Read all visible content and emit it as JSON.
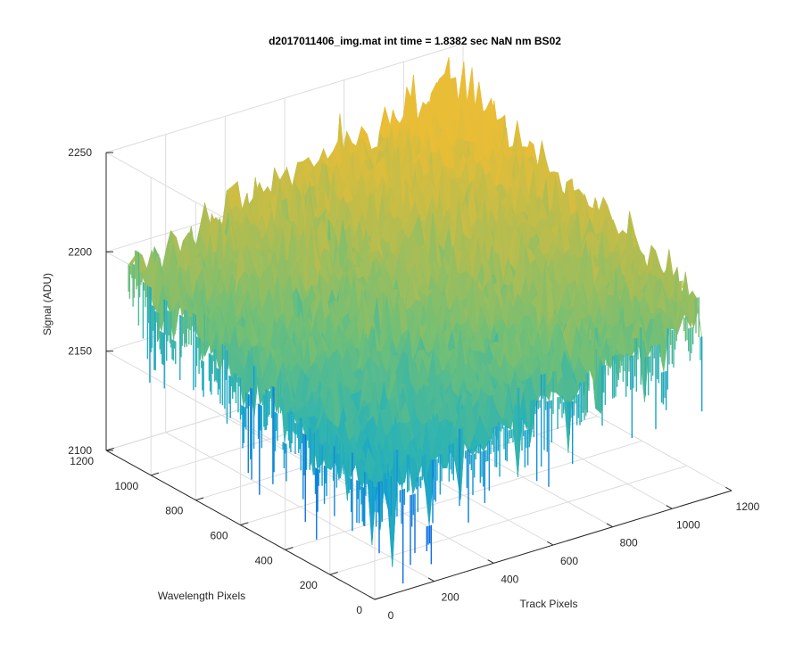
{
  "chart_data": {
    "type": "surface",
    "title": "d2017011406_img.mat int time = 1.8382 sec  NaN nm BS02",
    "xlabel": "Track Pixels",
    "ylabel": "Wavelength Pixels",
    "zlabel": "Signal (ADU)",
    "xlim": [
      0,
      1200
    ],
    "ylim": [
      0,
      1200
    ],
    "zlim": [
      2100,
      2250
    ],
    "x_ticks": [
      "0",
      "200",
      "400",
      "600",
      "800",
      "1000",
      "1200"
    ],
    "y_ticks": [
      "0",
      "200",
      "400",
      "600",
      "800",
      "1000",
      "1200"
    ],
    "z_ticks": [
      "2100",
      "2150",
      "2200",
      "2250"
    ],
    "grid": true,
    "colormap": "parula",
    "surface_extent": {
      "x": [
        0,
        1100
      ],
      "y": [
        0,
        1100
      ]
    },
    "surface_level": {
      "corner_x0_y0": 2155,
      "corner_x1100_y0": 2195,
      "corner_x0_y1100": 2195,
      "corner_x1100_y1100": 2240
    },
    "noise_amplitude": 10,
    "color_scale": {
      "low_value": 2120,
      "high_value": 2230,
      "stops": [
        "#0d6ede",
        "#139fd3",
        "#30b4b0",
        "#6fbf78",
        "#b5bd4f",
        "#e9bd36"
      ]
    }
  }
}
